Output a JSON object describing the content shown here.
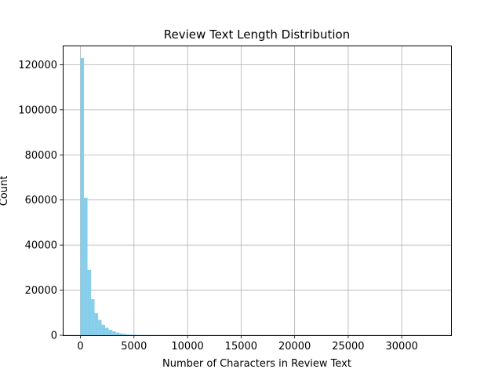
{
  "chart_data": {
    "type": "bar",
    "title": "Review Text Length Distribution",
    "xlabel": "Number of Characters in Review Text",
    "ylabel": "Count",
    "xlim": [
      -1650,
      34600
    ],
    "ylim": [
      0,
      128500
    ],
    "x_ticks": [
      0,
      5000,
      10000,
      15000,
      20000,
      25000,
      30000
    ],
    "y_ticks": [
      0,
      20000,
      40000,
      60000,
      80000,
      100000,
      120000
    ],
    "grid": true,
    "bar_color": "#87ceeb",
    "bin_width": 330,
    "bins": [
      {
        "x0": 0,
        "x1": 330,
        "count": 123000
      },
      {
        "x0": 330,
        "x1": 660,
        "count": 61000
      },
      {
        "x0": 660,
        "x1": 990,
        "count": 29000
      },
      {
        "x0": 990,
        "x1": 1320,
        "count": 16000
      },
      {
        "x0": 1320,
        "x1": 1650,
        "count": 9800
      },
      {
        "x0": 1650,
        "x1": 1980,
        "count": 6800
      },
      {
        "x0": 1980,
        "x1": 2310,
        "count": 4600
      },
      {
        "x0": 2310,
        "x1": 2640,
        "count": 3300
      },
      {
        "x0": 2640,
        "x1": 2970,
        "count": 2400
      },
      {
        "x0": 2970,
        "x1": 3300,
        "count": 1700
      },
      {
        "x0": 3300,
        "x1": 3630,
        "count": 1200
      },
      {
        "x0": 3630,
        "x1": 3960,
        "count": 850
      },
      {
        "x0": 3960,
        "x1": 4290,
        "count": 600
      },
      {
        "x0": 4290,
        "x1": 4620,
        "count": 420
      },
      {
        "x0": 4620,
        "x1": 4950,
        "count": 300
      },
      {
        "x0": 4950,
        "x1": 5280,
        "count": 220
      },
      {
        "x0": 5280,
        "x1": 5610,
        "count": 160
      },
      {
        "x0": 5610,
        "x1": 5940,
        "count": 110
      },
      {
        "x0": 5940,
        "x1": 6270,
        "count": 80
      },
      {
        "x0": 6270,
        "x1": 6600,
        "count": 55
      },
      {
        "x0": 6600,
        "x1": 6930,
        "count": 40
      },
      {
        "x0": 6930,
        "x1": 7260,
        "count": 30
      }
    ]
  }
}
